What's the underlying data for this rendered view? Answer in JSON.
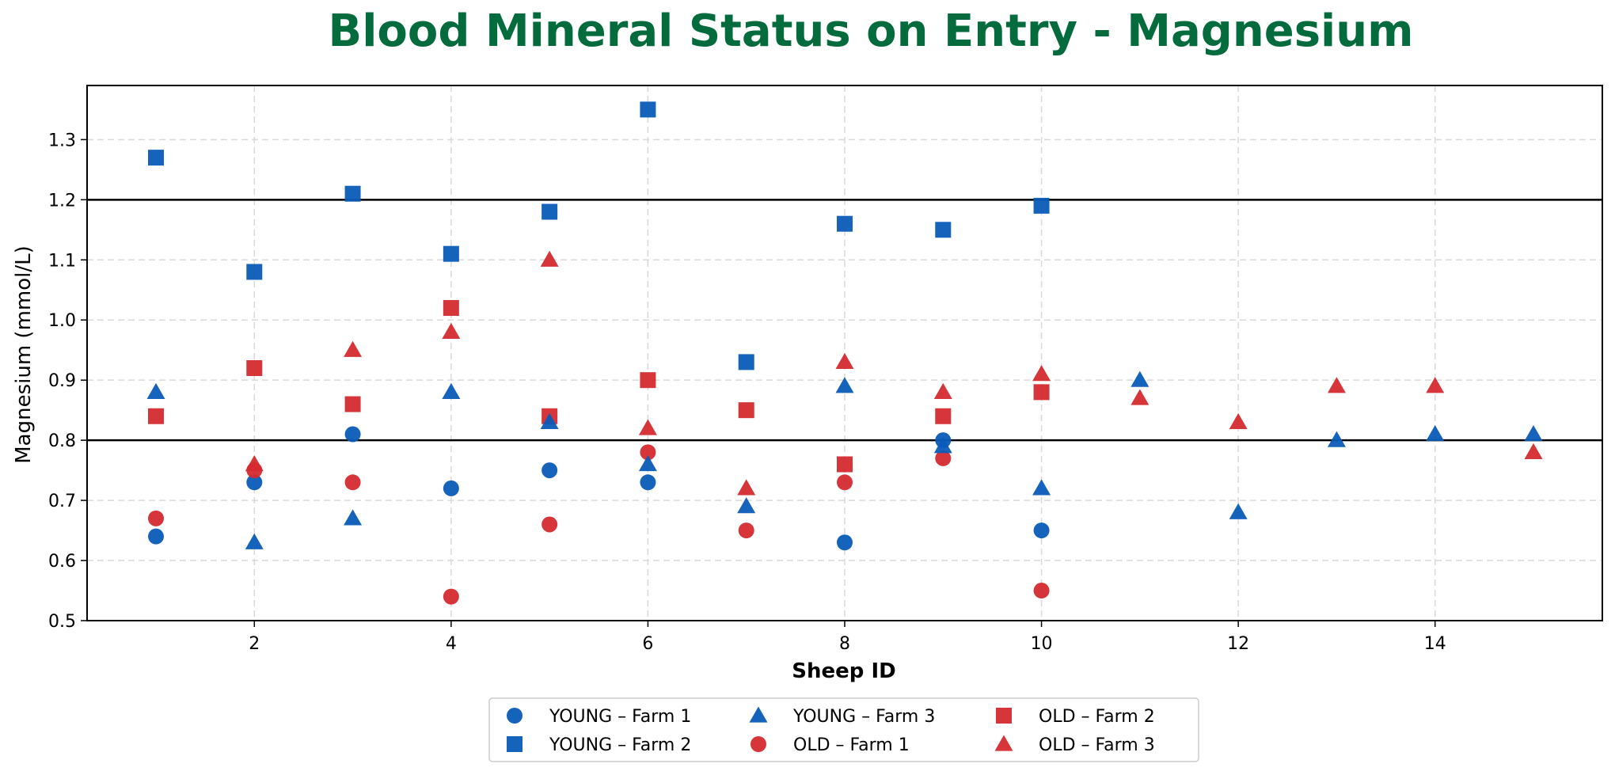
{
  "chart_data": {
    "type": "scatter",
    "title": "Blood Mineral Status on Entry - Magnesium",
    "title_color": "#046B3D",
    "xlabel": "Sheep ID",
    "ylabel": "Magnesium (mmol/L)",
    "xlim": [
      0.3,
      15.7
    ],
    "ylim": [
      0.5,
      1.39
    ],
    "xticks": [
      2,
      4,
      6,
      8,
      10,
      12,
      14
    ],
    "yticks": [
      0.5,
      0.6,
      0.7,
      0.8,
      0.9,
      1.0,
      1.1,
      1.2,
      1.3
    ],
    "ytick_labels": [
      "0.5",
      "0.6",
      "0.7",
      "0.8",
      "0.9",
      "1.0",
      "1.1",
      "1.2",
      "1.3"
    ],
    "grid": true,
    "reference_lines": [
      0.8,
      1.2
    ],
    "legend_position": "bottom-center",
    "colors": {
      "young": "#0A5BB8",
      "old": "#D42A2F"
    },
    "series": [
      {
        "name": "YOUNG – Farm 1",
        "marker": "circle",
        "color": "#0A5BB8",
        "x": [
          1,
          2,
          3,
          4,
          5,
          6,
          8,
          9,
          10
        ],
        "y": [
          0.64,
          0.73,
          0.81,
          0.72,
          0.75,
          0.73,
          0.63,
          0.8,
          0.65
        ]
      },
      {
        "name": "OLD – Farm 1",
        "marker": "circle",
        "color": "#D42A2F",
        "x": [
          1,
          2,
          3,
          4,
          5,
          6,
          7,
          8,
          9,
          10
        ],
        "y": [
          0.67,
          0.75,
          0.73,
          0.54,
          0.66,
          0.78,
          0.65,
          0.73,
          0.77,
          0.55
        ]
      },
      {
        "name": "YOUNG – Farm 2",
        "marker": "square",
        "color": "#0A5BB8",
        "x": [
          1,
          2,
          3,
          4,
          5,
          6,
          7,
          8,
          9,
          10
        ],
        "y": [
          1.27,
          1.08,
          1.21,
          1.11,
          1.18,
          1.35,
          0.93,
          1.16,
          1.15,
          1.19
        ]
      },
      {
        "name": "OLD – Farm 2",
        "marker": "square",
        "color": "#D42A2F",
        "x": [
          1,
          2,
          3,
          4,
          5,
          6,
          7,
          8,
          9,
          10
        ],
        "y": [
          0.84,
          0.92,
          0.86,
          1.02,
          0.84,
          0.9,
          0.85,
          0.76,
          0.84,
          0.88
        ]
      },
      {
        "name": "YOUNG – Farm 3",
        "marker": "triangle",
        "color": "#0A5BB8",
        "x": [
          1,
          2,
          3,
          4,
          5,
          6,
          7,
          8,
          9,
          10,
          11,
          12,
          13,
          14,
          15
        ],
        "y": [
          0.88,
          0.63,
          0.67,
          0.88,
          0.83,
          0.76,
          0.69,
          0.89,
          0.79,
          0.72,
          0.9,
          0.68,
          0.8,
          0.81,
          0.81
        ]
      },
      {
        "name": "OLD – Farm 3",
        "marker": "triangle",
        "color": "#D42A2F",
        "x": [
          2,
          3,
          4,
          5,
          6,
          7,
          8,
          9,
          10,
          11,
          12,
          13,
          14,
          15
        ],
        "y": [
          0.76,
          0.95,
          0.98,
          1.1,
          0.82,
          0.72,
          0.93,
          0.88,
          0.91,
          0.87,
          0.83,
          0.89,
          0.89,
          0.78
        ]
      }
    ],
    "legend_order": [
      0,
      2,
      4,
      1,
      3,
      5
    ]
  }
}
